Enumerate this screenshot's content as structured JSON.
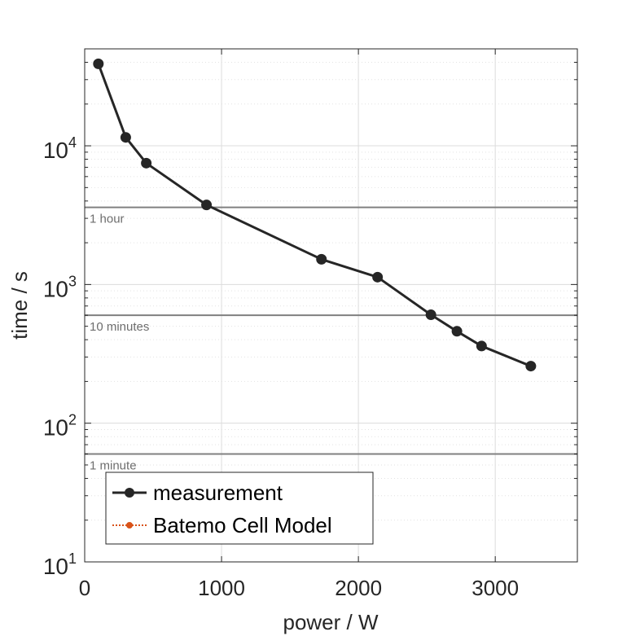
{
  "chart_data": {
    "type": "line",
    "xlabel": "power / W",
    "ylabel": "time / s",
    "xlim": [
      0,
      3600
    ],
    "ylim": [
      10,
      50000
    ],
    "yscale": "log",
    "x_ticks": [
      0,
      1000,
      2000,
      3000
    ],
    "x_tick_labels": [
      "0",
      "1000",
      "2000",
      "3000"
    ],
    "y_ticks": [
      10,
      100,
      1000,
      10000
    ],
    "y_tick_labels": [
      {
        "base": "10",
        "exp": "1"
      },
      {
        "base": "10",
        "exp": "2"
      },
      {
        "base": "10",
        "exp": "3"
      },
      {
        "base": "10",
        "exp": "4"
      }
    ],
    "grid": true,
    "legend_position": "bottom-left",
    "series": [
      {
        "name": "measurement",
        "color": "#262626",
        "marker": "circle",
        "x": [
          100,
          300,
          450,
          890,
          1730,
          2140,
          2530,
          2720,
          2900,
          3260
        ],
        "y": [
          39000,
          11500,
          7500,
          3750,
          1520,
          1130,
          605,
          460,
          360,
          258
        ]
      },
      {
        "name": "Batemo Cell Model",
        "color": "#D95319",
        "marker": "circle",
        "line_style": "dotted",
        "x": [],
        "y": []
      }
    ],
    "reference_lines": [
      {
        "y": 3600,
        "label": "1 hour"
      },
      {
        "y": 600,
        "label": "10 minutes"
      },
      {
        "y": 60,
        "label": "1 minute"
      }
    ],
    "colors": {
      "axis": "#262626",
      "grid": "#dcdcdc",
      "reference_line": "#808080",
      "reference_label": "#6e6e6e"
    }
  }
}
